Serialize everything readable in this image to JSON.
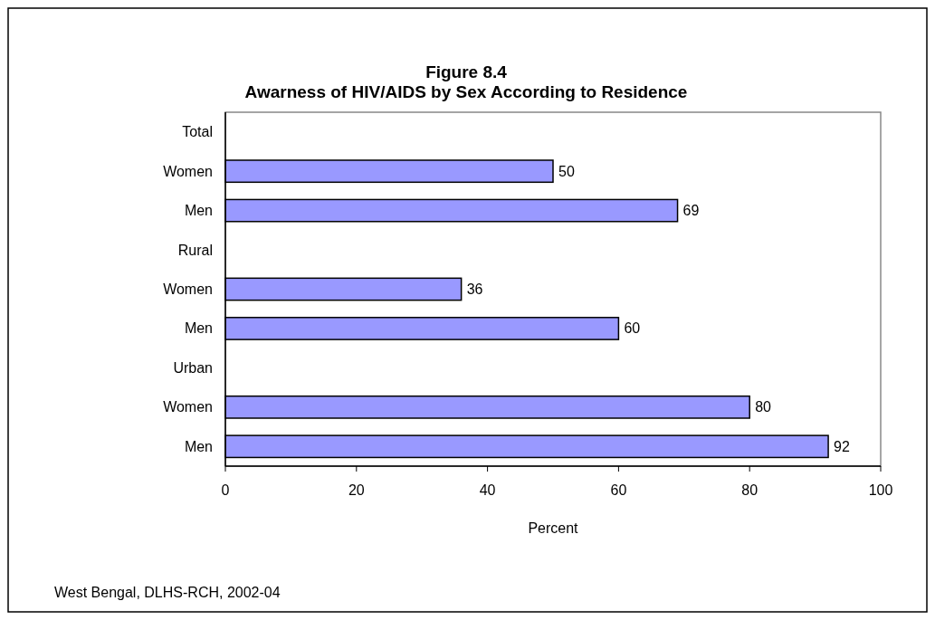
{
  "chart_data": {
    "type": "bar",
    "orientation": "horizontal",
    "title": "Figure 8.4",
    "subtitle": "Awarness of HIV/AIDS by Sex According to Residence",
    "xlabel": "Percent",
    "categories": [
      "Total",
      "Women",
      "Men",
      "Rural",
      "Women",
      "Men",
      "Urban",
      "Women",
      "Men"
    ],
    "values": [
      null,
      50,
      69,
      null,
      36,
      60,
      null,
      80,
      92
    ],
    "color": "#9999ff",
    "data_labels": true,
    "xlim": [
      0,
      100
    ],
    "xticks": [
      0,
      20,
      40,
      60,
      80,
      100
    ],
    "grid": false,
    "annotations": [
      "West Bengal, DLHS-RCH, 2002-04"
    ]
  }
}
